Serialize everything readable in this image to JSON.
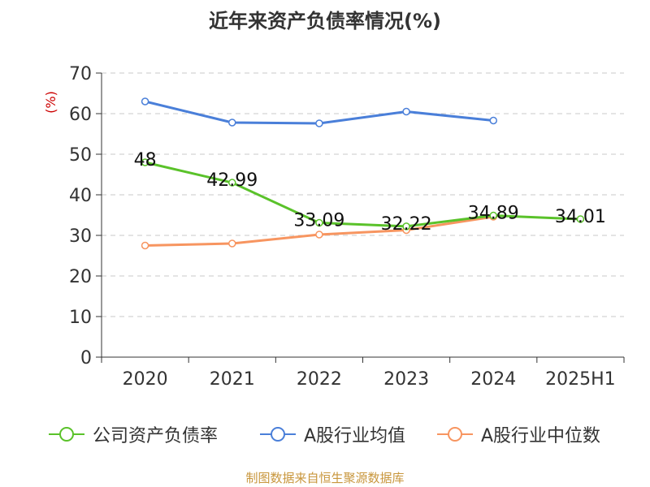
{
  "title": "近年来资产负债率情况(%)",
  "source": "制图数据来自恒生聚源数据库",
  "colors": {
    "company": "#5ac22a",
    "avg": "#4a7fd9",
    "median": "#f79560",
    "unit_label": "#cc0000"
  },
  "chart_data": {
    "type": "line",
    "title": "近年来资产负债率情况(%)",
    "ylabel": "(%)",
    "xlabel": "",
    "ylim": [
      0,
      70
    ],
    "yticks": [
      0,
      10,
      20,
      30,
      40,
      50,
      60,
      70
    ],
    "grid": true,
    "legend_position": "bottom",
    "categories": [
      "2020",
      "2021",
      "2022",
      "2023",
      "2024",
      "2025H1"
    ],
    "series": [
      {
        "key": "company",
        "name": "公司资产负债率",
        "values": [
          48,
          42.99,
          33.09,
          32.22,
          34.89,
          34.01
        ],
        "labels": [
          "48",
          "42.99",
          "33.09",
          "32.22",
          "34.89",
          "34.01"
        ]
      },
      {
        "key": "avg",
        "name": "A股行业均值",
        "values": [
          63.0,
          57.8,
          57.6,
          60.5,
          58.3,
          null
        ],
        "labels": []
      },
      {
        "key": "median",
        "name": "A股行业中位数",
        "values": [
          27.5,
          28.0,
          30.2,
          31.3,
          34.6,
          null
        ],
        "labels": []
      }
    ]
  }
}
